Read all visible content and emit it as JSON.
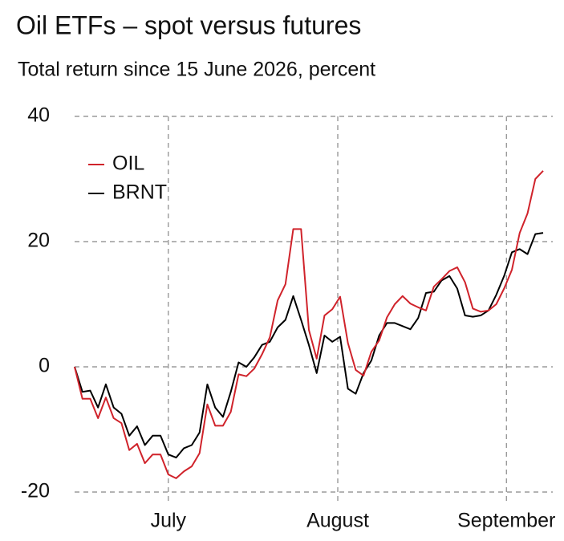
{
  "chart_data": {
    "type": "line",
    "title": "Oil ETFs – spot versus futures",
    "subtitle": "Total return since 15 June 2026, percent",
    "x": [
      0,
      1,
      2,
      3,
      4,
      5,
      6,
      7,
      8,
      9,
      10,
      11,
      12,
      13,
      14,
      15,
      16,
      17,
      18,
      19,
      20,
      21,
      22,
      23,
      24,
      25,
      26,
      27,
      28,
      29,
      30,
      31,
      32,
      33,
      34,
      35,
      36,
      37,
      38,
      39,
      40,
      41,
      42,
      43,
      44,
      45,
      46,
      47,
      48,
      49,
      50,
      51,
      52,
      53,
      54,
      55,
      56,
      57,
      58,
      59,
      60
    ],
    "series": [
      {
        "name": "OIL",
        "color": "#d0232b",
        "values": [
          0,
          -5.1,
          -5.1,
          -8.2,
          -4.9,
          -8.2,
          -9,
          -13.3,
          -12.3,
          -15.4,
          -14,
          -14,
          -17.2,
          -17.8,
          -16.7,
          -15.9,
          -13.8,
          -6,
          -9.4,
          -9.4,
          -7.2,
          -1.2,
          -1.5,
          -0.3,
          2,
          4.7,
          10.6,
          13.2,
          22,
          22,
          5.9,
          1.3,
          8.2,
          9.2,
          11.2,
          3.8,
          -0.5,
          -1.4,
          2.4,
          4.2,
          7.9,
          10,
          11.3,
          10.1,
          9.5,
          9,
          12.8,
          14,
          15.3,
          15.9,
          13.5,
          9.3,
          8.8,
          9,
          10,
          12.5,
          15.5,
          21.4,
          24.5,
          30,
          31.3
        ]
      },
      {
        "name": "BRNT",
        "color": "#000000",
        "values": [
          0,
          -4,
          -3.8,
          -6.5,
          -2.8,
          -6.5,
          -7.5,
          -11,
          -9.5,
          -12.5,
          -11,
          -11,
          -14,
          -14.5,
          -13,
          -12.5,
          -10.5,
          -2.8,
          -6.5,
          -8,
          -4,
          0.7,
          0,
          1.5,
          3.5,
          4,
          6.3,
          7.5,
          11.3,
          7.5,
          3.5,
          -1,
          5,
          4,
          4.8,
          -3.5,
          -4.3,
          -1,
          1,
          5,
          7,
          7,
          6.5,
          6,
          7.8,
          11.8,
          12,
          13.8,
          14.5,
          12.5,
          8.2,
          8,
          8.2,
          9,
          11.5,
          14.5,
          18.3,
          18.8,
          18,
          21.2,
          21.4
        ]
      }
    ],
    "xlim": [
      0,
      60
    ],
    "xticks": [
      {
        "value": 12,
        "label": "July"
      },
      {
        "value": 33.7,
        "label": "August"
      },
      {
        "value": 55.3,
        "label": "September"
      }
    ],
    "ylim": [
      -20,
      40
    ],
    "yticks": [
      -20,
      0,
      20,
      40
    ],
    "grid": true,
    "legend": "top-left"
  }
}
